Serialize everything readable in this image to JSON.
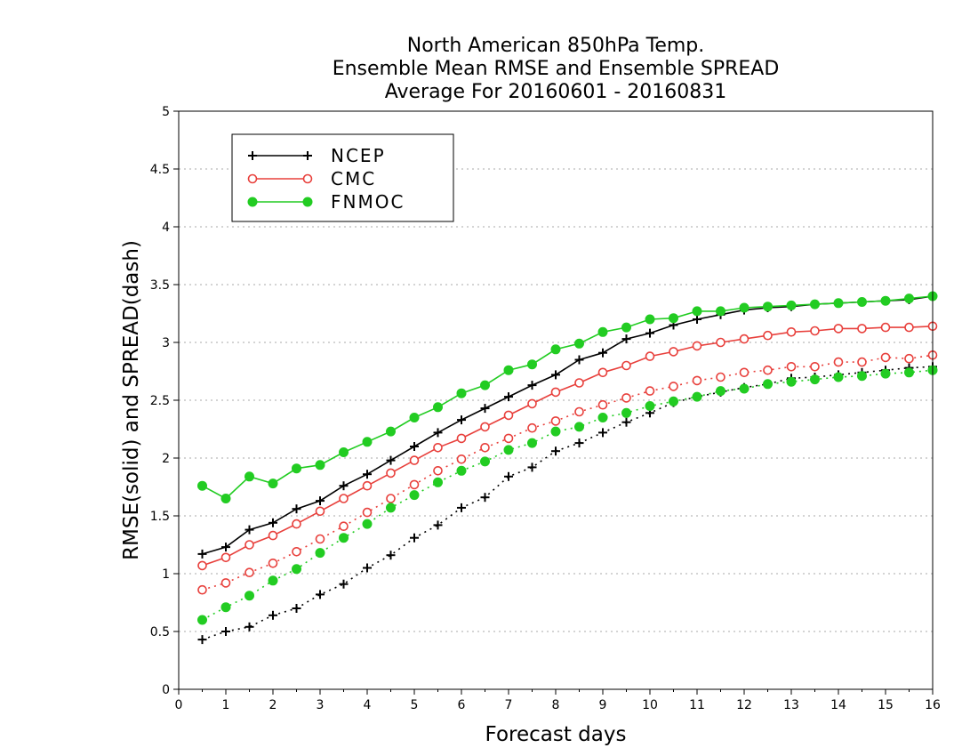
{
  "chart_data": {
    "type": "line",
    "title": [
      "North American 850hPa Temp.",
      "Ensemble Mean RMSE and Ensemble SPREAD",
      "Average For 20160601 - 20160831"
    ],
    "xlabel": "Forecast days",
    "ylabel": "RMSE(solid) and SPREAD(dash)",
    "xlim": [
      0,
      16
    ],
    "ylim": [
      0,
      5
    ],
    "xticks": [
      "0",
      "1",
      "2",
      "3",
      "4",
      "5",
      "6",
      "7",
      "8",
      "9",
      "10",
      "11",
      "12",
      "13",
      "14",
      "15",
      "16"
    ],
    "yticks": [
      "0",
      "0.5",
      "1",
      "1.5",
      "2",
      "2.5",
      "3",
      "3.5",
      "4",
      "4.5",
      "5"
    ],
    "grid": "horizontal dotted",
    "legend_position": "top-left",
    "x": [
      0.5,
      1,
      1.5,
      2,
      2.5,
      3,
      3.5,
      4,
      4.5,
      5,
      5.5,
      6,
      6.5,
      7,
      7.5,
      8,
      8.5,
      9,
      9.5,
      10,
      10.5,
      11,
      11.5,
      12,
      12.5,
      13,
      13.5,
      14,
      14.5,
      15,
      15.5,
      16
    ],
    "series": [
      {
        "name": "NCEP",
        "color": "#000000",
        "marker": "plus",
        "rmse": [
          1.17,
          1.23,
          1.38,
          1.44,
          1.56,
          1.63,
          1.76,
          1.86,
          1.98,
          2.1,
          2.22,
          2.33,
          2.43,
          2.53,
          2.63,
          2.72,
          2.85,
          2.91,
          3.03,
          3.08,
          3.15,
          3.2,
          3.24,
          3.28,
          3.3,
          3.31,
          3.33,
          3.34,
          3.35,
          3.36,
          3.37,
          3.4
        ],
        "spread": [
          0.43,
          0.5,
          0.54,
          0.64,
          0.7,
          0.82,
          0.91,
          1.05,
          1.16,
          1.31,
          1.42,
          1.57,
          1.66,
          1.84,
          1.92,
          2.06,
          2.13,
          2.22,
          2.31,
          2.39,
          2.48,
          2.53,
          2.57,
          2.61,
          2.64,
          2.69,
          2.7,
          2.72,
          2.74,
          2.76,
          2.78,
          2.79
        ]
      },
      {
        "name": "CMC",
        "color": "#e8403c",
        "marker": "open-circle",
        "rmse": [
          1.07,
          1.14,
          1.25,
          1.33,
          1.43,
          1.54,
          1.65,
          1.76,
          1.87,
          1.98,
          2.09,
          2.17,
          2.27,
          2.37,
          2.47,
          2.57,
          2.65,
          2.74,
          2.8,
          2.88,
          2.92,
          2.97,
          3.0,
          3.03,
          3.06,
          3.09,
          3.1,
          3.12,
          3.12,
          3.13,
          3.13,
          3.14
        ],
        "spread": [
          0.86,
          0.92,
          1.01,
          1.09,
          1.19,
          1.3,
          1.41,
          1.53,
          1.65,
          1.77,
          1.89,
          1.99,
          2.09,
          2.17,
          2.26,
          2.32,
          2.4,
          2.46,
          2.52,
          2.58,
          2.62,
          2.67,
          2.7,
          2.74,
          2.76,
          2.79,
          2.79,
          2.83,
          2.83,
          2.87,
          2.86,
          2.89
        ]
      },
      {
        "name": "FNMOC",
        "color": "#22cc22",
        "marker": "filled-circle",
        "rmse": [
          1.76,
          1.65,
          1.84,
          1.78,
          1.91,
          1.94,
          2.05,
          2.14,
          2.23,
          2.35,
          2.44,
          2.56,
          2.63,
          2.76,
          2.81,
          2.94,
          2.99,
          3.09,
          3.13,
          3.2,
          3.21,
          3.27,
          3.27,
          3.3,
          3.31,
          3.32,
          3.33,
          3.34,
          3.35,
          3.36,
          3.38,
          3.4
        ],
        "spread": [
          0.6,
          0.71,
          0.81,
          0.94,
          1.04,
          1.18,
          1.31,
          1.43,
          1.57,
          1.68,
          1.79,
          1.89,
          1.97,
          2.07,
          2.13,
          2.23,
          2.27,
          2.35,
          2.39,
          2.45,
          2.49,
          2.53,
          2.58,
          2.6,
          2.64,
          2.66,
          2.68,
          2.7,
          2.71,
          2.73,
          2.74,
          2.76
        ]
      }
    ]
  }
}
